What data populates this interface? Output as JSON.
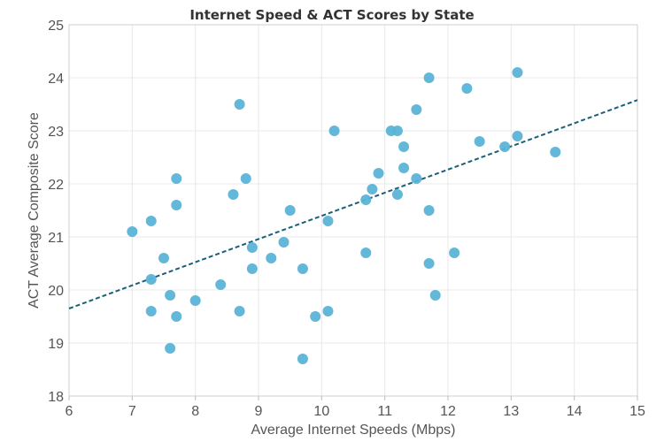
{
  "chart_data": {
    "type": "scatter",
    "title": "Internet Speed & ACT Scores by State",
    "xlabel": "Average Internet Speeds (Mbps)",
    "ylabel": "ACT Average Composite Score",
    "xlim": [
      6,
      15
    ],
    "ylim": [
      18,
      25
    ],
    "xticks": [
      6,
      7,
      8,
      9,
      10,
      11,
      12,
      13,
      14,
      15
    ],
    "yticks": [
      18,
      19,
      20,
      21,
      22,
      23,
      24,
      25
    ],
    "grid": true,
    "point_color": "#5bb3d6",
    "trendline_color": "#1a5f7a",
    "trendline": {
      "style": "dashed",
      "x": [
        6,
        15
      ],
      "y": [
        19.65,
        23.58
      ]
    },
    "points": [
      {
        "x": 7.0,
        "y": 21.1
      },
      {
        "x": 7.3,
        "y": 21.3
      },
      {
        "x": 7.3,
        "y": 20.2
      },
      {
        "x": 7.3,
        "y": 19.6
      },
      {
        "x": 7.5,
        "y": 20.6
      },
      {
        "x": 7.6,
        "y": 19.9
      },
      {
        "x": 7.6,
        "y": 18.9
      },
      {
        "x": 7.7,
        "y": 22.1
      },
      {
        "x": 7.7,
        "y": 21.6
      },
      {
        "x": 7.7,
        "y": 19.5
      },
      {
        "x": 8.0,
        "y": 19.8
      },
      {
        "x": 8.4,
        "y": 20.1
      },
      {
        "x": 8.6,
        "y": 21.8
      },
      {
        "x": 8.7,
        "y": 23.5
      },
      {
        "x": 8.7,
        "y": 19.6
      },
      {
        "x": 8.8,
        "y": 22.1
      },
      {
        "x": 8.9,
        "y": 20.8
      },
      {
        "x": 8.9,
        "y": 20.4
      },
      {
        "x": 9.2,
        "y": 20.6
      },
      {
        "x": 9.4,
        "y": 20.9
      },
      {
        "x": 9.5,
        "y": 21.5
      },
      {
        "x": 9.7,
        "y": 20.4
      },
      {
        "x": 9.7,
        "y": 18.7
      },
      {
        "x": 9.9,
        "y": 19.5
      },
      {
        "x": 10.1,
        "y": 21.3
      },
      {
        "x": 10.1,
        "y": 19.6
      },
      {
        "x": 10.2,
        "y": 23.0
      },
      {
        "x": 10.7,
        "y": 21.7
      },
      {
        "x": 10.7,
        "y": 20.7
      },
      {
        "x": 10.8,
        "y": 21.9
      },
      {
        "x": 10.9,
        "y": 22.2
      },
      {
        "x": 11.1,
        "y": 23.0
      },
      {
        "x": 11.2,
        "y": 23.0
      },
      {
        "x": 11.2,
        "y": 21.8
      },
      {
        "x": 11.3,
        "y": 22.7
      },
      {
        "x": 11.3,
        "y": 22.3
      },
      {
        "x": 11.5,
        "y": 23.4
      },
      {
        "x": 11.5,
        "y": 22.1
      },
      {
        "x": 11.7,
        "y": 24.0
      },
      {
        "x": 11.7,
        "y": 21.5
      },
      {
        "x": 11.7,
        "y": 20.5
      },
      {
        "x": 11.8,
        "y": 19.9
      },
      {
        "x": 12.1,
        "y": 20.7
      },
      {
        "x": 12.3,
        "y": 23.8
      },
      {
        "x": 12.5,
        "y": 22.8
      },
      {
        "x": 12.9,
        "y": 22.7
      },
      {
        "x": 13.1,
        "y": 24.1
      },
      {
        "x": 13.1,
        "y": 22.9
      },
      {
        "x": 13.7,
        "y": 22.6
      }
    ]
  }
}
